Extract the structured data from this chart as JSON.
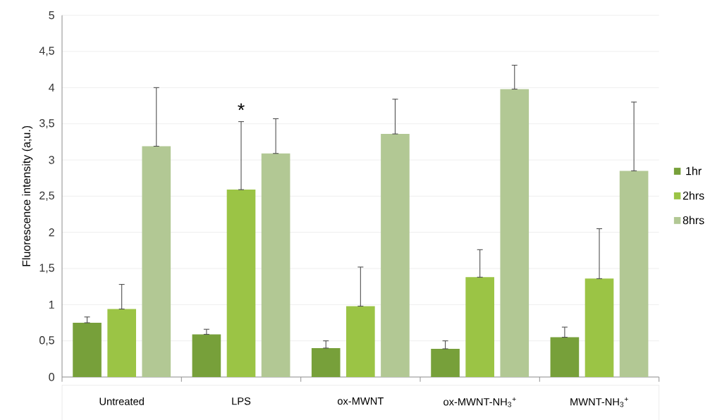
{
  "chart_data": {
    "type": "bar",
    "ylabel": "Fluorescence intensity (a;u.)",
    "categories": [
      "Untreated",
      "LPS",
      "ox-MWNT",
      "ox-MWNT-NH$_{3}$$^{+}$",
      "MWNT-NH$_{3}$$^{+}$"
    ],
    "series": [
      {
        "name": "1hr",
        "color": "#77a03a",
        "values": [
          0.75,
          0.59,
          0.4,
          0.39,
          0.55
        ],
        "errors": [
          [
            0.75,
            0.83
          ],
          [
            0.59,
            0.66
          ],
          [
            0.4,
            0.5
          ],
          [
            0.39,
            0.5
          ],
          [
            0.55,
            0.69
          ]
        ]
      },
      {
        "name": "2hrs",
        "color": "#9bc445",
        "values": [
          0.94,
          2.59,
          0.98,
          1.38,
          1.36
        ],
        "errors": [
          [
            0.94,
            1.28
          ],
          [
            2.59,
            3.53
          ],
          [
            0.98,
            1.52
          ],
          [
            1.38,
            1.76
          ],
          [
            1.36,
            2.05
          ]
        ]
      },
      {
        "name": "8hrs",
        "color": "#b2c894",
        "values": [
          3.19,
          3.09,
          3.36,
          3.98,
          2.85
        ],
        "errors": [
          [
            3.19,
            4.0
          ],
          [
            3.09,
            3.57
          ],
          [
            3.36,
            3.84
          ],
          [
            3.98,
            4.31
          ],
          [
            2.85,
            3.8
          ]
        ]
      }
    ],
    "ylim": [
      0,
      5
    ],
    "yticks": [
      0,
      {
        "value": 0.5,
        "label": "0,5"
      },
      1,
      {
        "value": 1.5,
        "label": "1,5"
      },
      2,
      {
        "value": 2.5,
        "label": "2,5"
      },
      3,
      {
        "value": 3.5,
        "label": "3,5"
      },
      4,
      {
        "value": 4.5,
        "label": "4,5"
      },
      5
    ],
    "annotations": [
      {
        "text": "*",
        "x": "LPS",
        "y": 3.53
      }
    ],
    "grid": "y",
    "legend": "right"
  }
}
